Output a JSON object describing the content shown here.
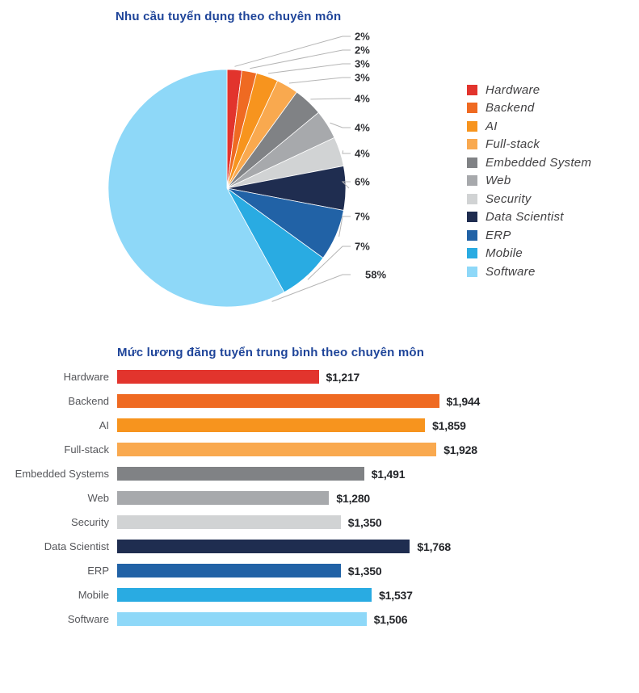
{
  "styles": {
    "title_color": "#1e4499",
    "category_label_color": "#55565a",
    "value_label_color": "#232529",
    "legend_text_color": "#414042",
    "leader_line_color": "#b5b5b5",
    "percent_label_color": "#2e2f33",
    "page_bg": "#ffffff"
  },
  "chart_data": [
    {
      "type": "pie",
      "title": "Nhu cầu tuyển dụng theo chuyên môn",
      "labels": [
        "Hardware",
        "Backend",
        "AI",
        "Full-stack",
        "Embedded System",
        "Web",
        "Security",
        "Data Scientist",
        "ERP",
        "Mobile",
        "Software"
      ],
      "values": [
        2,
        2,
        3,
        3,
        4,
        4,
        4,
        6,
        7,
        7,
        58
      ],
      "value_labels": [
        "2%",
        "2%",
        "3%",
        "3%",
        "4%",
        "4%",
        "4%",
        "6%",
        "7%",
        "7%",
        "58%"
      ],
      "unit": "%",
      "colors": [
        "#e2342d",
        "#ef6a22",
        "#f7941e",
        "#f9a94f",
        "#808285",
        "#a7a9ac",
        "#d1d3d4",
        "#1f2d50",
        "#2162a6",
        "#29abe2",
        "#8ed8f8"
      ],
      "legend_position": "right",
      "start_angle": "12 o'clock clockwise"
    },
    {
      "type": "bar",
      "orientation": "horizontal",
      "title": "Mức lương đăng tuyển trung bình theo chuyên môn",
      "categories": [
        "Hardware",
        "Backend",
        "AI",
        "Full-stack",
        "Embedded Systems",
        "Web",
        "Security",
        "Data Scientist",
        "ERP",
        "Mobile",
        "Software"
      ],
      "values": [
        1217,
        1944,
        1859,
        1928,
        1491,
        1280,
        1350,
        1768,
        1350,
        1537,
        1506
      ],
      "value_labels": [
        "$1,217",
        "$1,944",
        "$1,859",
        "$1,928",
        "$1,491",
        "$1,280",
        "$1,350",
        "$1,768",
        "$1,350",
        "$1,537",
        "$1,506"
      ],
      "colors": [
        "#e2342d",
        "#ef6a22",
        "#f7941e",
        "#f9a94f",
        "#808285",
        "#a7a9ac",
        "#d1d3d4",
        "#1f2d50",
        "#2162a6",
        "#29abe2",
        "#8ed8f8"
      ],
      "xlabel": "",
      "ylabel": "",
      "xlim": [
        0,
        2000
      ],
      "grid": false,
      "legend_position": "none"
    }
  ]
}
